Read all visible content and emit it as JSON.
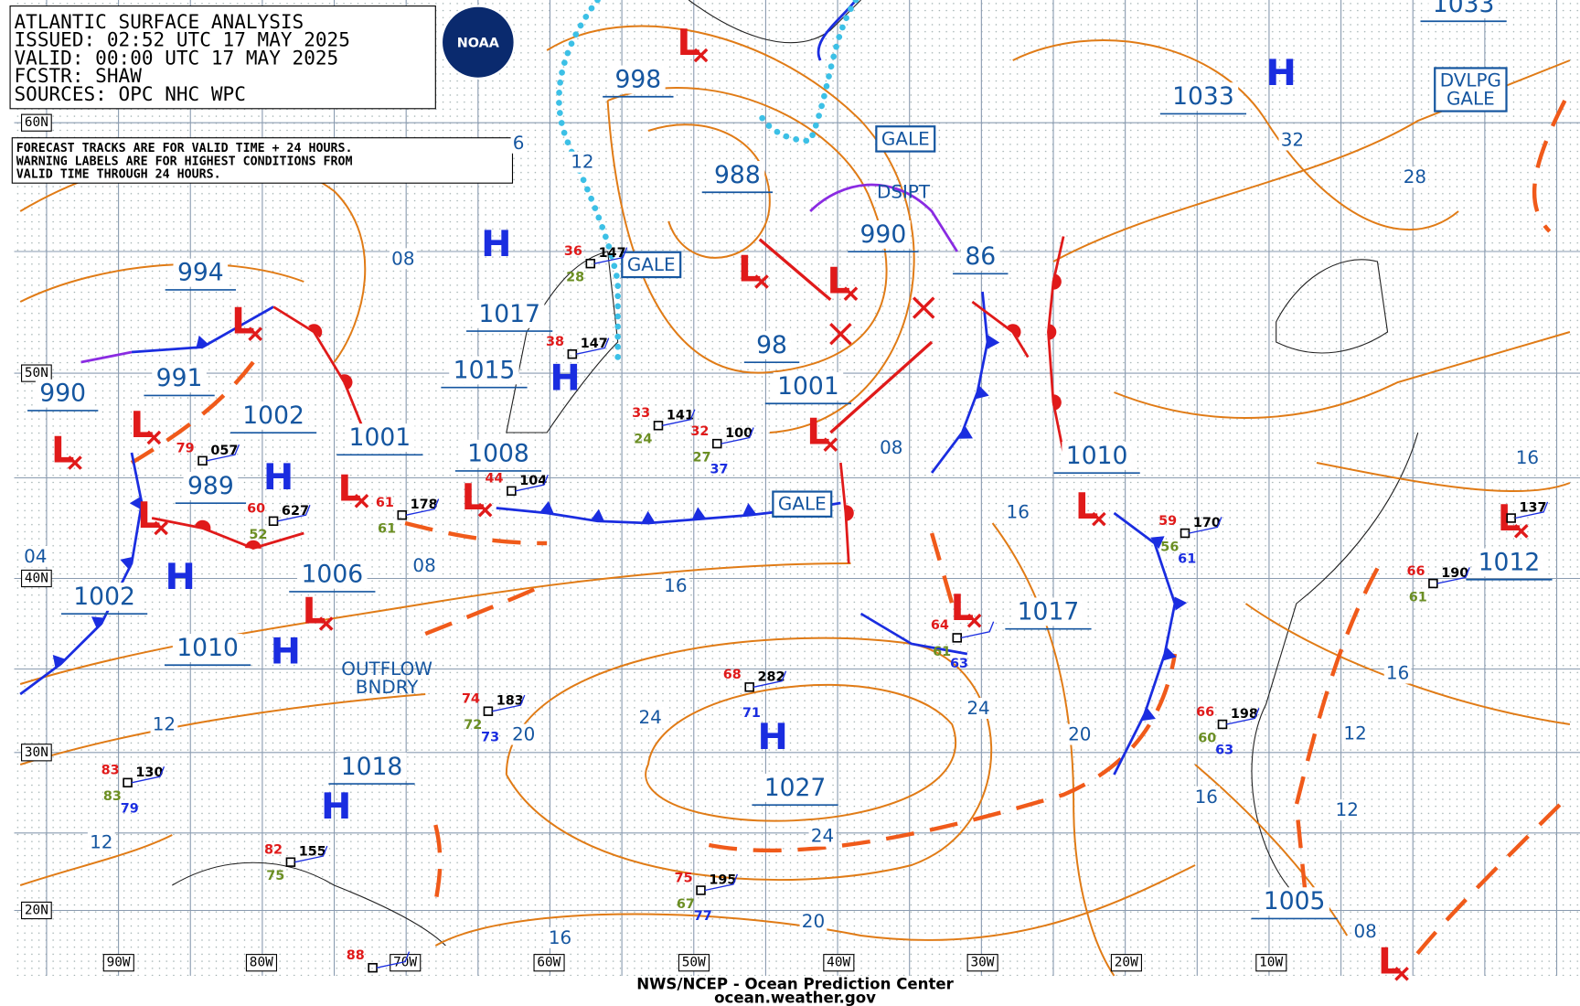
{
  "header": {
    "lines": [
      "ATLANTIC SURFACE ANALYSIS",
      "ISSUED: 02:52 UTC 17 MAY 2025",
      "VALID:  00:00 UTC 17 MAY 2025",
      "FCSTR:  SHAW",
      "SOURCES: OPC NHC WPC"
    ],
    "logo": "NOAA"
  },
  "note": [
    "FORECAST TRACKS ARE FOR VALID TIME + 24 HOURS.",
    "WARNING LABELS ARE FOR HIGHEST CONDITIONS FROM",
    "VALID TIME THROUGH 24 HOURS."
  ],
  "lat_labels": [
    "60N",
    "50N",
    "40N",
    "30N",
    "20N"
  ],
  "lon_labels": [
    "90W",
    "80W",
    "70W",
    "60W",
    "50W",
    "40W",
    "30W",
    "20W",
    "10W"
  ],
  "pressure_labels": [
    998,
    1033,
    1033,
    988,
    994,
    1017,
    990,
    86,
    1015,
    98,
    1001,
    991,
    1002,
    990,
    1001,
    1008,
    1010,
    989,
    1006,
    1017,
    1002,
    1010,
    1012,
    1018,
    1027,
    1005
  ],
  "centers": [
    "H",
    "H",
    "H",
    "H",
    "H",
    "H",
    "H",
    "H",
    "L",
    "L",
    "L",
    "L",
    "L",
    "L",
    "L",
    "L",
    "L",
    "L",
    "L",
    "L",
    "L",
    "L",
    "L"
  ],
  "isobar_labels": [
    12,
    6,
    "08",
    32,
    28,
    "08",
    16,
    16,
    "08",
    16,
    "04",
    12,
    24,
    20,
    24,
    20,
    12,
    16,
    16,
    12,
    12,
    "08",
    16,
    20,
    24
  ],
  "warnings": [
    [
      "GALE"
    ],
    [
      "GALE"
    ],
    [
      "GALE"
    ],
    [
      "DSIPT"
    ],
    [
      "DVLPG",
      "GALE"
    ],
    [
      "OUTFLOW",
      "BNDRY"
    ]
  ],
  "stations": [
    {
      "p": 147,
      "t": 36,
      "d": 28
    },
    {
      "p": 147,
      "t": 38
    },
    {
      "p": 141,
      "t": 33,
      "d": 24
    },
    {
      "p": 100,
      "t": 32,
      "d": 27,
      "v": 37
    },
    {
      "p": "057",
      "t": 79
    },
    {
      "p": "627",
      "t": 60,
      "d": 52
    },
    {
      "p": 178,
      "t": 61,
      "d": 61
    },
    {
      "p": 104,
      "t": 44
    },
    {
      "p": 170,
      "t": 59,
      "d": 56,
      "v": 61
    },
    {
      "p": 137
    },
    {
      "p": 190,
      "t": 66,
      "d": 61
    },
    {
      "p": 282,
      "t": 68,
      "v": 71
    },
    {
      "p": 183,
      "t": 74,
      "d": 72,
      "v": 73
    },
    {
      "p": 198,
      "t": 66,
      "d": 60,
      "v": 63
    },
    {
      "p": 130,
      "t": 83,
      "d": 83,
      "v": 79
    },
    {
      "p": 155,
      "t": 82,
      "d": 75
    },
    {
      "p": 195,
      "t": 75,
      "d": 67,
      "v": 77
    },
    {
      "t": 64,
      "d": 61,
      "v": 63
    },
    {
      "t": 88
    }
  ],
  "footer": [
    "NWS/NCEP - Ocean Prediction Center",
    "ocean.weather.gov"
  ]
}
